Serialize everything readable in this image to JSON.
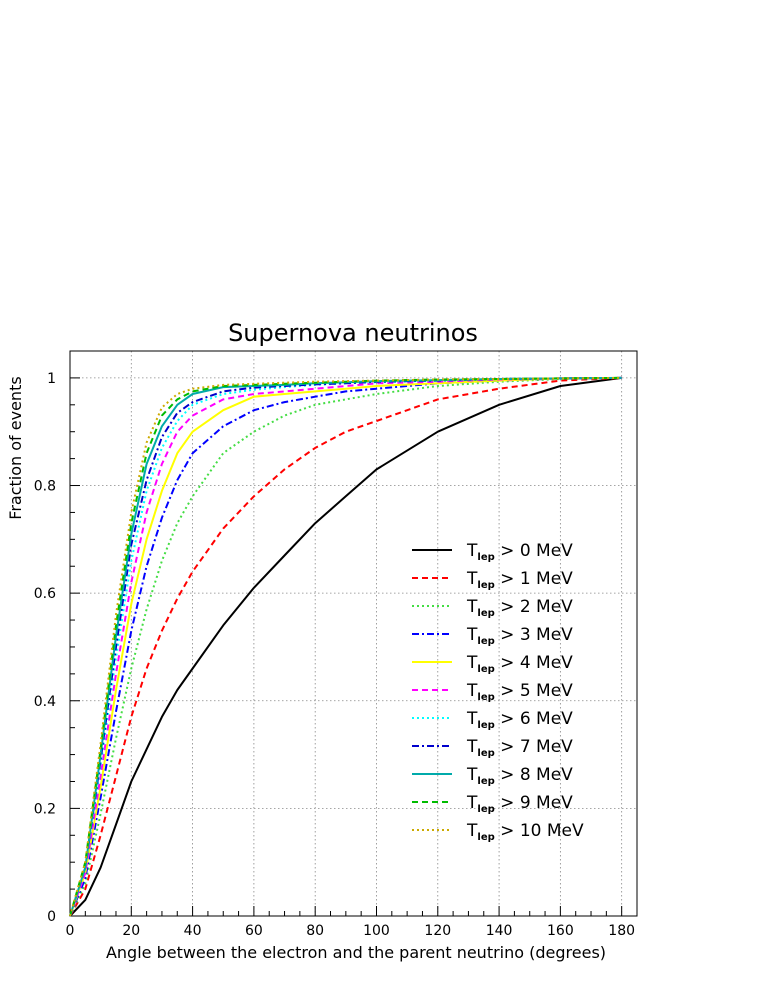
{
  "chart_data": {
    "type": "line",
    "title": "Supernova neutrinos",
    "xlabel": "Angle between the electron and the parent neutrino (degrees)",
    "ylabel": "Fraction of events",
    "xlim": [
      0,
      185
    ],
    "ylim": [
      0,
      1.05
    ],
    "x_ticks": [
      0,
      20,
      40,
      60,
      80,
      100,
      120,
      140,
      160,
      180
    ],
    "y_ticks": [
      0,
      0.2,
      0.4,
      0.6,
      0.8,
      1
    ],
    "x_tick_labels": [
      "0",
      "20",
      "40",
      "60",
      "80",
      "100",
      "120",
      "140",
      "160",
      "180"
    ],
    "y_tick_labels": [
      "0",
      "0.2",
      "0.4",
      "0.6",
      "0.8",
      "1"
    ],
    "grid": true,
    "legend_position": "lower-right",
    "x": [
      0,
      5,
      10,
      15,
      20,
      25,
      30,
      35,
      40,
      50,
      60,
      70,
      80,
      90,
      100,
      120,
      140,
      160,
      180
    ],
    "series": [
      {
        "name": "T_lep > 0 MeV",
        "sub": "lep",
        "rest": "> 0 MeV",
        "color": "#000000",
        "dash": "solid",
        "values": [
          0,
          0.03,
          0.09,
          0.17,
          0.25,
          0.31,
          0.37,
          0.42,
          0.46,
          0.54,
          0.61,
          0.67,
          0.73,
          0.78,
          0.83,
          0.9,
          0.95,
          0.985,
          1.0
        ]
      },
      {
        "name": "T_lep > 1 MeV",
        "sub": "lep",
        "rest": "> 1 MeV",
        "color": "#ff0000",
        "dash": "dashed",
        "values": [
          0,
          0.05,
          0.15,
          0.26,
          0.37,
          0.46,
          0.53,
          0.59,
          0.64,
          0.72,
          0.78,
          0.83,
          0.87,
          0.9,
          0.92,
          0.96,
          0.98,
          0.995,
          1.0
        ]
      },
      {
        "name": "T_lep > 2 MeV",
        "sub": "lep",
        "rest": "> 2 MeV",
        "color": "#44dd44",
        "dash": "dotted",
        "values": [
          0,
          0.06,
          0.19,
          0.33,
          0.46,
          0.57,
          0.66,
          0.73,
          0.78,
          0.86,
          0.9,
          0.93,
          0.95,
          0.96,
          0.97,
          0.985,
          0.993,
          0.998,
          1.0
        ]
      },
      {
        "name": "T_lep > 3 MeV",
        "sub": "lep",
        "rest": "> 3 MeV",
        "color": "#0000ff",
        "dash": "dashdot",
        "values": [
          0,
          0.07,
          0.22,
          0.38,
          0.53,
          0.65,
          0.74,
          0.81,
          0.86,
          0.91,
          0.94,
          0.955,
          0.965,
          0.975,
          0.98,
          0.99,
          0.995,
          0.999,
          1.0
        ]
      },
      {
        "name": "T_lep > 4 MeV",
        "sub": "lep",
        "rest": "> 4 MeV",
        "color": "#ffff00",
        "dash": "solid",
        "values": [
          0,
          0.08,
          0.24,
          0.42,
          0.58,
          0.7,
          0.79,
          0.86,
          0.9,
          0.94,
          0.965,
          0.97,
          0.975,
          0.98,
          0.985,
          0.99,
          0.995,
          0.999,
          1.0
        ]
      },
      {
        "name": "T_lep > 5 MeV",
        "sub": "lep",
        "rest": "> 5 MeV",
        "color": "#ff00ff",
        "dash": "dashed",
        "values": [
          0,
          0.08,
          0.26,
          0.45,
          0.62,
          0.75,
          0.84,
          0.9,
          0.93,
          0.96,
          0.97,
          0.975,
          0.98,
          0.985,
          0.99,
          0.993,
          0.997,
          0.999,
          1.0
        ]
      },
      {
        "name": "T_lep > 6 MeV",
        "sub": "lep",
        "rest": "> 6 MeV",
        "color": "#00ffff",
        "dash": "dotted",
        "values": [
          0,
          0.09,
          0.28,
          0.48,
          0.66,
          0.79,
          0.87,
          0.92,
          0.95,
          0.97,
          0.978,
          0.983,
          0.987,
          0.99,
          0.992,
          0.995,
          0.998,
          0.999,
          1.0
        ]
      },
      {
        "name": "T_lep > 7 MeV",
        "sub": "lep",
        "rest": "> 7 MeV",
        "color": "#0000cc",
        "dash": "dashdot",
        "values": [
          0,
          0.09,
          0.29,
          0.5,
          0.69,
          0.81,
          0.89,
          0.935,
          0.955,
          0.975,
          0.982,
          0.985,
          0.988,
          0.99,
          0.993,
          0.995,
          0.998,
          0.999,
          1.0
        ]
      },
      {
        "name": "T_lep > 8 MeV",
        "sub": "lep",
        "rest": "> 8 MeV",
        "color": "#00aaaa",
        "dash": "solid",
        "values": [
          0,
          0.09,
          0.3,
          0.52,
          0.71,
          0.84,
          0.91,
          0.95,
          0.97,
          0.983,
          0.985,
          0.987,
          0.99,
          0.992,
          0.994,
          0.996,
          0.998,
          0.999,
          1.0
        ]
      },
      {
        "name": "T_lep > 9 MeV",
        "sub": "lep",
        "rest": "> 9 MeV",
        "color": "#00bb00",
        "dash": "dashed",
        "values": [
          0,
          0.1,
          0.31,
          0.54,
          0.73,
          0.86,
          0.93,
          0.96,
          0.975,
          0.985,
          0.987,
          0.989,
          0.991,
          0.993,
          0.995,
          0.997,
          0.998,
          0.999,
          1.0
        ]
      },
      {
        "name": "T_lep > 10 MeV",
        "sub": "lep",
        "rest": "> 10 MeV",
        "color": "#ccaa00",
        "dash": "dotted",
        "values": [
          0,
          0.1,
          0.32,
          0.56,
          0.75,
          0.88,
          0.945,
          0.97,
          0.98,
          0.987,
          0.989,
          0.991,
          0.993,
          0.994,
          0.995,
          0.997,
          0.998,
          0.999,
          1.0
        ]
      }
    ]
  }
}
